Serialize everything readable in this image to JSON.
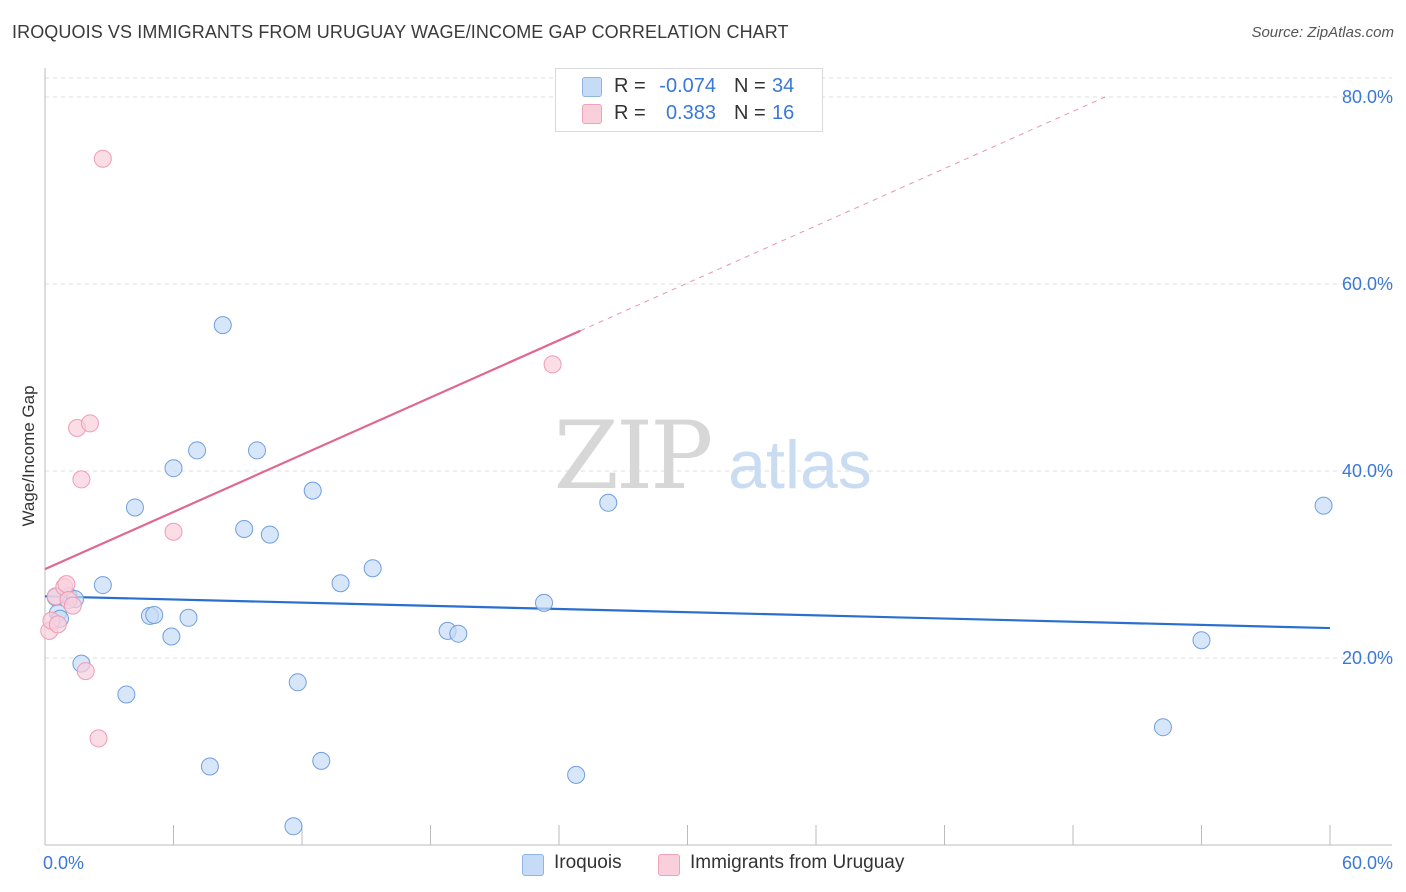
{
  "header": {
    "title": "IROQUOIS VS IMMIGRANTS FROM URUGUAY WAGE/INCOME GAP CORRELATION CHART",
    "source": "Source: ZipAtlas.com"
  },
  "legend": {
    "rows": [
      {
        "r_label": "R =",
        "r_value": "-0.074",
        "n_label": "N =",
        "n_value": "34",
        "color": "#a9c8f0"
      },
      {
        "r_label": "R =",
        "r_value": "0.383",
        "n_label": "N =",
        "n_value": "16",
        "color": "#f7b9cb"
      }
    ]
  },
  "bottom_legend": {
    "items": [
      {
        "label": "Iroquois",
        "color": "#a9c8f0"
      },
      {
        "label": "Immigrants from Uruguay",
        "color": "#f7b9cb"
      }
    ]
  },
  "watermark": {
    "zip": "ZIP",
    "atlas": "atlas"
  },
  "chart_data": {
    "type": "scatter",
    "title": "IROQUOIS VS IMMIGRANTS FROM URUGUAY WAGE/INCOME GAP CORRELATION CHART",
    "xlabel": "",
    "ylabel": "Wage/Income Gap",
    "xlim": [
      0,
      60
    ],
    "ylim": [
      0,
      80
    ],
    "x_tick_labels": [
      "0.0%",
      "60.0%"
    ],
    "y_ticks": [
      20,
      40,
      60,
      80
    ],
    "y_tick_labels": [
      "20.0%",
      "40.0%",
      "60.0%",
      "80.0%"
    ],
    "grid": true,
    "series": [
      {
        "name": "Iroquois",
        "color": "#6f9fe0",
        "fill": "#c6dbf6",
        "line_color": "#2a6fcf",
        "trend": {
          "x": [
            0,
            60
          ],
          "y": [
            26.6,
            23.2
          ]
        },
        "points": [
          [
            0.5,
            26.5
          ],
          [
            0.6,
            24.8
          ],
          [
            0.7,
            24.2
          ],
          [
            1.1,
            26.6
          ],
          [
            1.4,
            26.3
          ],
          [
            2.7,
            27.8
          ],
          [
            1.7,
            19.4
          ],
          [
            3.8,
            16.1
          ],
          [
            4.2,
            36.1
          ],
          [
            4.9,
            24.5
          ],
          [
            5.1,
            24.6
          ],
          [
            5.9,
            22.3
          ],
          [
            6.0,
            40.3
          ],
          [
            6.7,
            24.3
          ],
          [
            7.1,
            42.2
          ],
          [
            7.7,
            8.4
          ],
          [
            8.3,
            55.6
          ],
          [
            9.3,
            33.8
          ],
          [
            9.9,
            42.2
          ],
          [
            10.5,
            33.2
          ],
          [
            11.6,
            2.0
          ],
          [
            11.8,
            17.4
          ],
          [
            12.5,
            37.9
          ],
          [
            12.9,
            9.0
          ],
          [
            13.8,
            28.0
          ],
          [
            15.3,
            29.6
          ],
          [
            18.8,
            22.9
          ],
          [
            19.3,
            22.6
          ],
          [
            23.3,
            25.9
          ],
          [
            24.8,
            7.5
          ],
          [
            26.3,
            36.6
          ],
          [
            52.2,
            12.6
          ],
          [
            54.0,
            21.9
          ],
          [
            59.7,
            36.3
          ]
        ]
      },
      {
        "name": "Immigrants from Uruguay",
        "color": "#ee9cb6",
        "fill": "#f9cfdc",
        "line_color": "#e0688e",
        "trend": {
          "x": [
            0,
            25
          ],
          "y": [
            29.5,
            55.0
          ]
        },
        "trend_dashed": {
          "x": [
            25,
            49.5
          ],
          "y": [
            55.0,
            80.0
          ]
        },
        "points": [
          [
            0.2,
            22.9
          ],
          [
            0.3,
            24.0
          ],
          [
            0.5,
            26.6
          ],
          [
            0.6,
            23.6
          ],
          [
            0.9,
            27.6
          ],
          [
            1.0,
            27.9
          ],
          [
            1.1,
            26.2
          ],
          [
            1.3,
            25.6
          ],
          [
            1.5,
            44.6
          ],
          [
            1.7,
            39.1
          ],
          [
            1.9,
            18.6
          ],
          [
            2.1,
            45.1
          ],
          [
            2.5,
            11.4
          ],
          [
            2.7,
            73.4
          ],
          [
            6.0,
            33.5
          ],
          [
            23.7,
            51.4
          ]
        ]
      }
    ]
  }
}
